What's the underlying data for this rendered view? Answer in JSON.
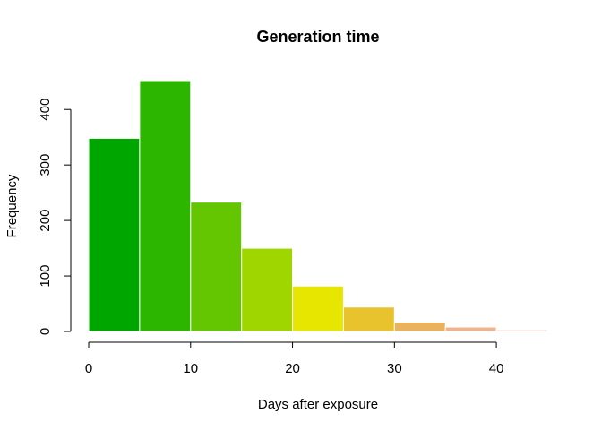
{
  "chart_data": {
    "type": "bar",
    "title": "Generation time",
    "xlabel": "Days after exposure",
    "ylabel": "Frequency",
    "bins": [
      {
        "x0": 0,
        "x1": 5,
        "value": 348,
        "color": "#00A600"
      },
      {
        "x0": 5,
        "x1": 10,
        "value": 452,
        "color": "#2DB600"
      },
      {
        "x0": 10,
        "x1": 15,
        "value": 233,
        "color": "#63C600"
      },
      {
        "x0": 15,
        "x1": 20,
        "value": 150,
        "color": "#A0D600"
      },
      {
        "x0": 20,
        "x1": 25,
        "value": 82,
        "color": "#E6E600"
      },
      {
        "x0": 25,
        "x1": 30,
        "value": 44,
        "color": "#E8C32E"
      },
      {
        "x0": 30,
        "x1": 35,
        "value": 17,
        "color": "#EBB25E"
      },
      {
        "x0": 35,
        "x1": 40,
        "value": 8,
        "color": "#EDB48E"
      },
      {
        "x0": 40,
        "x1": 45,
        "value": 3,
        "color": "#F0C9C0"
      }
    ],
    "xticks": [
      0,
      10,
      20,
      30,
      40
    ],
    "yticks": [
      0,
      100,
      200,
      300,
      400
    ],
    "xlim": [
      0,
      45
    ],
    "ylim": [
      0,
      452
    ],
    "bar_border_color": "#ffffff",
    "grid": false
  }
}
